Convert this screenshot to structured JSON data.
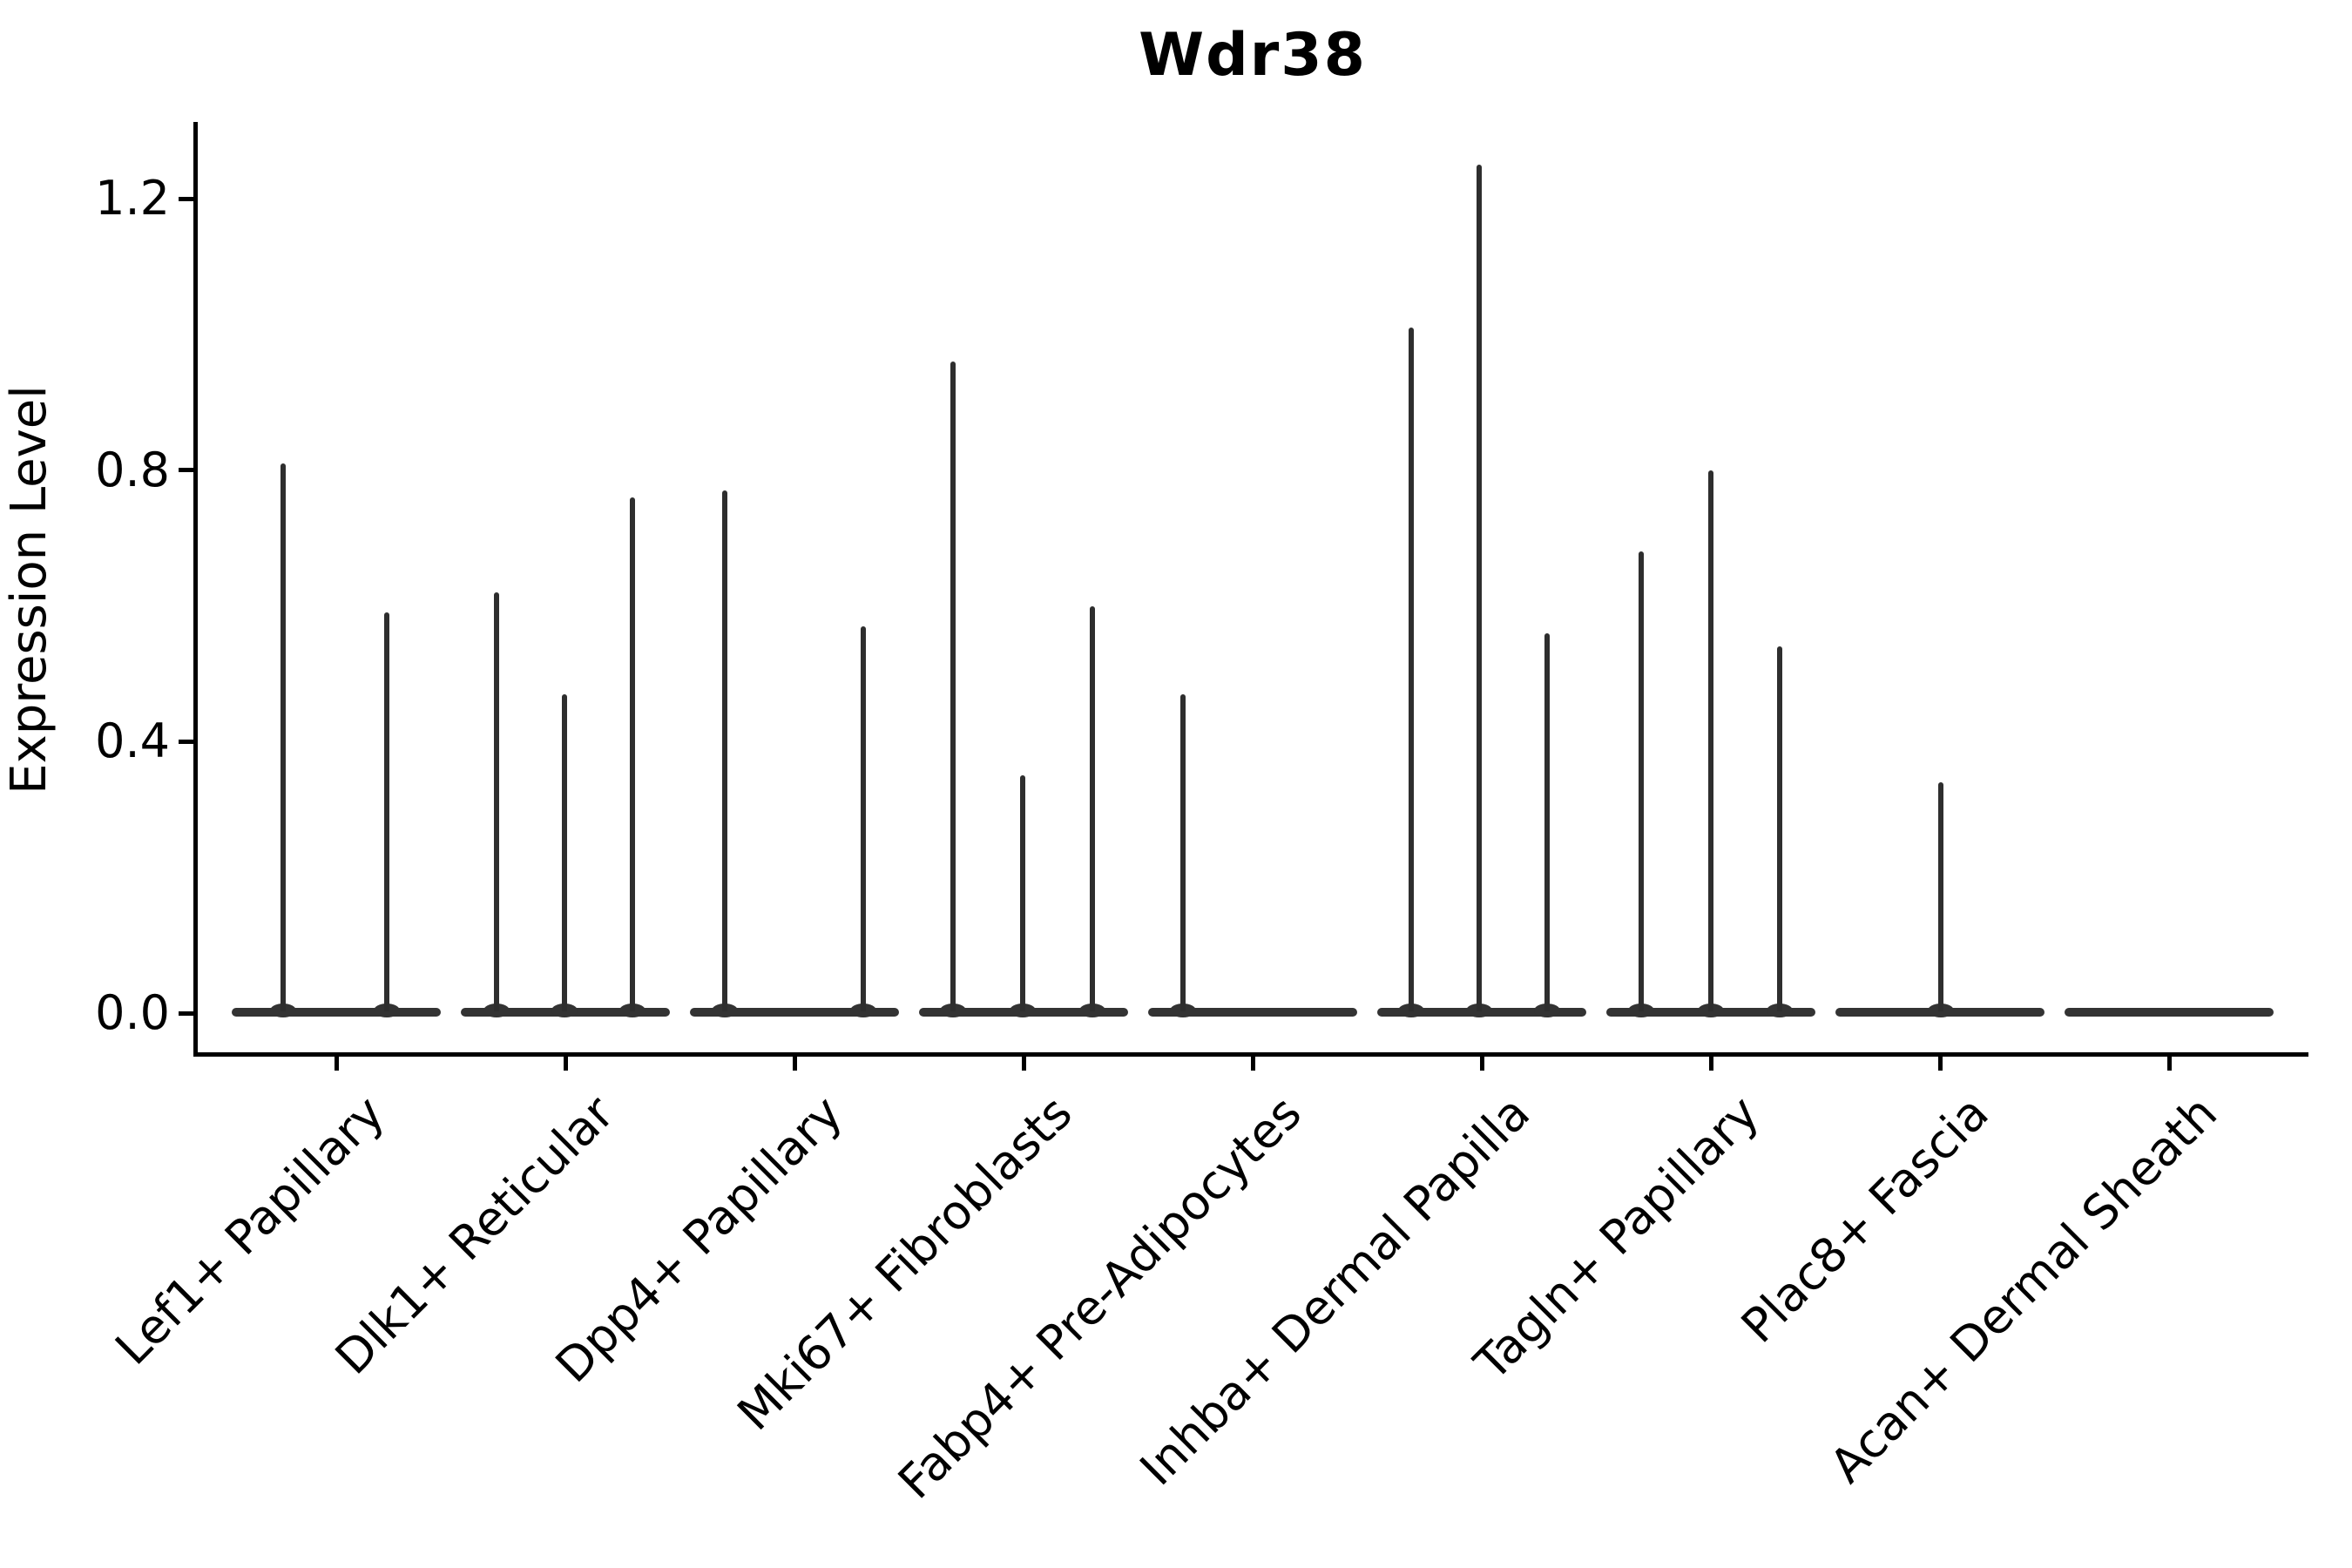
{
  "title": "Wdr38",
  "y_axis": {
    "label": "Expression Level",
    "tick_labels": [
      "0.0",
      "0.4",
      "0.8",
      "1.2"
    ]
  },
  "colors": {
    "background": "#ffffff",
    "axis": "#000000",
    "text": "#000000",
    "violin_body": "#333333",
    "violin_spike": "#2e2e2e"
  },
  "chart_data": {
    "type": "violin",
    "title": "Wdr38",
    "xlabel": "",
    "ylabel": "Expression Level",
    "ylim": [
      0,
      1.32
    ],
    "yticks": [
      0.0,
      0.4,
      0.8,
      1.2
    ],
    "grid": false,
    "legend": false,
    "description": "Single-cell expression violin plot; each category shows a flat density body at expression 0 with thin density spikes reaching the peak expression values of the few expressing cells.",
    "categories": [
      "Lef1+ Papillary",
      "Dlk1+ Reticular",
      "Dpp4+ Papillary",
      "Mki67+ Fibroblasts",
      "Fabp4+ Pre-Adipocytes",
      "Inhba+ Dermal Papilla",
      "Tagln+ Papillary",
      "Plac8+ Fascia",
      "Acan+ Dermal Sheath"
    ],
    "series": [
      {
        "name": "Lef1+ Papillary",
        "baseline_value": 0.0,
        "peaks": [
          {
            "dx": -61,
            "value": 0.81
          },
          {
            "dx": 58,
            "value": 0.59
          }
        ]
      },
      {
        "name": "Dlk1+ Reticular",
        "baseline_value": 0.0,
        "peaks": [
          {
            "dx": -79,
            "value": 0.62
          },
          {
            "dx": -1,
            "value": 0.47
          },
          {
            "dx": 77,
            "value": 0.76
          }
        ]
      },
      {
        "name": "Dpp4+ Papillary",
        "baseline_value": 0.0,
        "peaks": [
          {
            "dx": -80,
            "value": 0.77
          },
          {
            "dx": 79,
            "value": 0.57
          }
        ]
      },
      {
        "name": "Mki67+ Fibroblasts",
        "baseline_value": 0.0,
        "peaks": [
          {
            "dx": -81,
            "value": 0.96
          },
          {
            "dx": -1,
            "value": 0.35
          },
          {
            "dx": 79,
            "value": 0.6
          }
        ]
      },
      {
        "name": "Fabp4+ Pre-Adipocytes",
        "baseline_value": 0.0,
        "peaks": [
          {
            "dx": -80,
            "value": 0.47
          }
        ]
      },
      {
        "name": "Inhba+ Dermal Papilla",
        "baseline_value": 0.0,
        "peaks": [
          {
            "dx": -81,
            "value": 1.01
          },
          {
            "dx": -3,
            "value": 1.25
          },
          {
            "dx": 75,
            "value": 0.56
          }
        ]
      },
      {
        "name": "Tagln+ Papillary",
        "baseline_value": 0.0,
        "peaks": [
          {
            "dx": -80,
            "value": 0.68
          },
          {
            "dx": 0,
            "value": 0.8
          },
          {
            "dx": 79,
            "value": 0.54
          }
        ]
      },
      {
        "name": "Plac8+ Fascia",
        "baseline_value": 0.0,
        "peaks": [
          {
            "dx": 1,
            "value": 0.34
          }
        ]
      },
      {
        "name": "Acan+ Dermal Sheath",
        "baseline_value": 0.0,
        "peaks": []
      }
    ]
  }
}
